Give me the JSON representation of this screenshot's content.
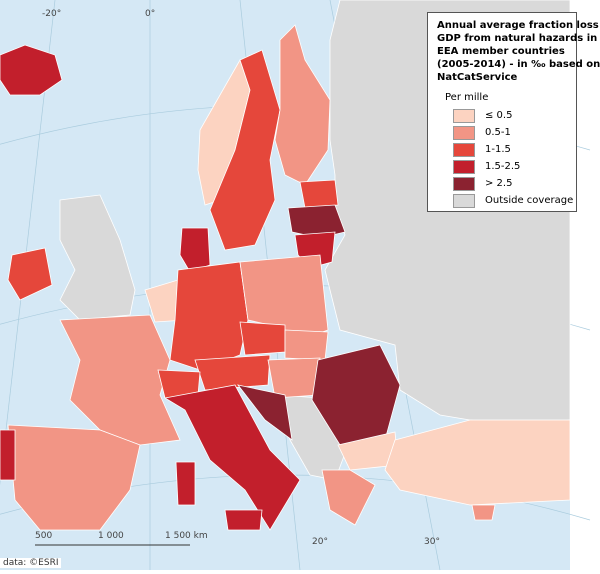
{
  "legend": {
    "title_lines": [
      "Annual average fraction loss",
      "GDP from natural hazards in",
      "EEA member countries",
      "(2005-2014) - in ‰ based on",
      "NatCatService"
    ],
    "subtitle": "Per mille",
    "items": [
      {
        "label": "≤ 0.5",
        "color": "#fcd3c1"
      },
      {
        "label": "0.5-1",
        "color": "#f29585"
      },
      {
        "label": "1-1.5",
        "color": "#e5473b"
      },
      {
        "label": "1.5-2.5",
        "color": "#c21f2c"
      },
      {
        "label": "> 2.5",
        "color": "#8b2230"
      },
      {
        "label": "Outside coverage",
        "color": "#d9d9d9"
      }
    ]
  },
  "graticule_labels": [
    "-20°",
    "0°",
    "20°",
    "30°"
  ],
  "scale_labels": [
    "500",
    "1 000",
    "1 500 km"
  ],
  "source": "data: ©ESRI"
}
